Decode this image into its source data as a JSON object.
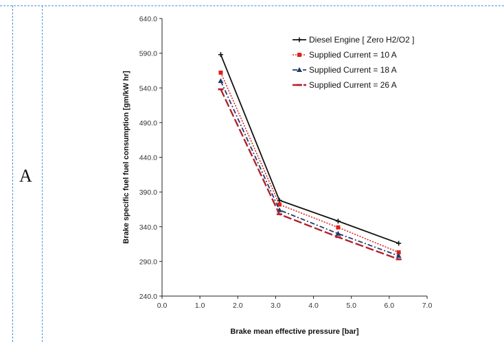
{
  "panel": {
    "label": "A"
  },
  "chart_data": {
    "type": "line",
    "title": "",
    "xlabel": "Brake mean effective pressure [bar]",
    "ylabel": "Brake specific fuel fuel consumption  [gm/kW hr]",
    "xlim": [
      0.0,
      7.0
    ],
    "ylim": [
      240.0,
      640.0
    ],
    "x_ticks": [
      "0.0",
      "1.0",
      "2.0",
      "3.0",
      "4.0",
      "5.0",
      "6.0",
      "7.0"
    ],
    "y_ticks": [
      "240.0",
      "290.0",
      "340.0",
      "390.0",
      "440.0",
      "490.0",
      "540.0",
      "590.0",
      "640.0"
    ],
    "grid": false,
    "legend_position": "top-right",
    "series": [
      {
        "name": "Diesel Engine [ Zero H2/O2 ]",
        "color": "#111111",
        "dash": "solid",
        "marker": "plus",
        "x": [
          1.55,
          3.1,
          4.65,
          6.25
        ],
        "y": [
          588,
          378,
          348,
          316
        ]
      },
      {
        "name": "Supplied Current = 10 A",
        "color": "#e0201b",
        "dash": "dotted",
        "marker": "square",
        "x": [
          1.55,
          3.1,
          4.65,
          6.25
        ],
        "y": [
          562,
          372,
          339,
          303
        ]
      },
      {
        "name": "Supplied Current = 18 A",
        "color": "#1f3a6b",
        "dash": "dashdot",
        "marker": "triangle",
        "x": [
          1.55,
          3.1,
          4.65,
          6.25
        ],
        "y": [
          550,
          364,
          330,
          298
        ]
      },
      {
        "name": "Supplied Current = 26 A",
        "color": "#b3202a",
        "dash": "longdash",
        "marker": "dash",
        "x": [
          1.55,
          3.1,
          4.65,
          6.25
        ],
        "y": [
          538,
          358,
          325,
          293
        ]
      }
    ]
  }
}
